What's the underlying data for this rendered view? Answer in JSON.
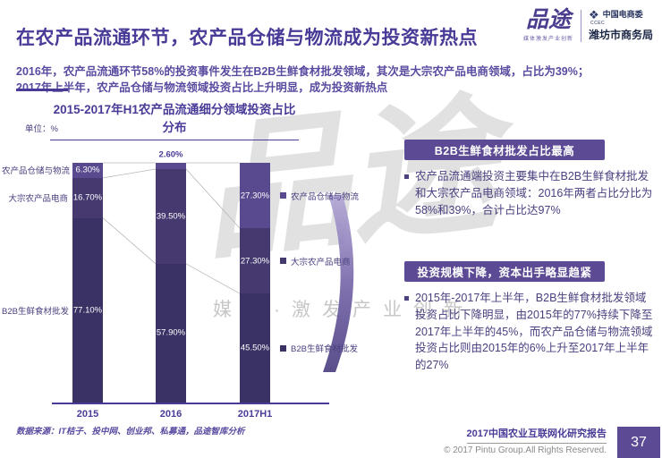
{
  "header": {
    "title": "在农产品流通环节，农产品仓储与物流成为投资新热点",
    "subtitle_line1": "2016年，农产品流通环节58%的投资事件发生在B2B生鲜食材批发领域，其次是大宗农产品电商领域，占比为39%；",
    "subtitle_line2": "2017年上半年，农产品仓储与物流领域投资占比上升明显，成为投资新热点",
    "logo": {
      "brand": "品途",
      "brand_tagline": "媒体激发产业创新",
      "org_icon": "❖",
      "org_top": "中国电商委",
      "org_sub": "CCEC",
      "org_bottom": "潍坊市商务局"
    }
  },
  "chart": {
    "title": "2015-2017年H1农产品流通细分领域投资占比分布",
    "unit_label": "单位：%"
  },
  "chart_data": {
    "type": "bar",
    "stacked": true,
    "percent_stacked": true,
    "title": "2015-2017年H1农产品流通细分领域投资占比分布",
    "unit": "%",
    "categories": [
      "2015",
      "2016",
      "2017H1"
    ],
    "series": [
      {
        "name": "农产品仓储与物流",
        "values": [
          6.3,
          2.6,
          27.3
        ],
        "color": "#59498e"
      },
      {
        "name": "大宗农产品电商",
        "values": [
          16.7,
          39.5,
          27.3
        ],
        "color": "#46396f"
      },
      {
        "name": "B2B生鲜食材批发",
        "values": [
          77.1,
          57.9,
          45.5
        ],
        "color": "#3a3164"
      }
    ],
    "ylim": [
      0,
      100
    ],
    "grid": false,
    "legend_position": "right",
    "value_label_format": "0.00%"
  },
  "watermark": {
    "brand_mark": "品途",
    "slogan": "媒体·激发产业创新"
  },
  "panels": [
    {
      "title": "B2B生鲜食材批发占比最高",
      "body": "农产品流通端投资主要集中在B2B生鲜食材批发和大宗农产品电商领域：2016年两者占比分比为58%和39%，合计占比达97%"
    },
    {
      "title": "投资规模下降，资本出手略显趋紧",
      "body": "2015年-2017年上半年，B2B生鲜食材批发领域投资占比下降明显，由2015年的77%持续下降至2017年上半年的45%，而农产品仓储与物流领域投资占比则由2015年的6%上升至2017年上半年的27%"
    }
  ],
  "footer": {
    "source": "数据来源：IT桔子、投中网、创业邦、私募通，品途智库分析",
    "report_title": "2017中国农业互联网化研究报告",
    "copyright": "© 2017 Pintu Group.All Rights Reserved.",
    "page_number": "37"
  }
}
